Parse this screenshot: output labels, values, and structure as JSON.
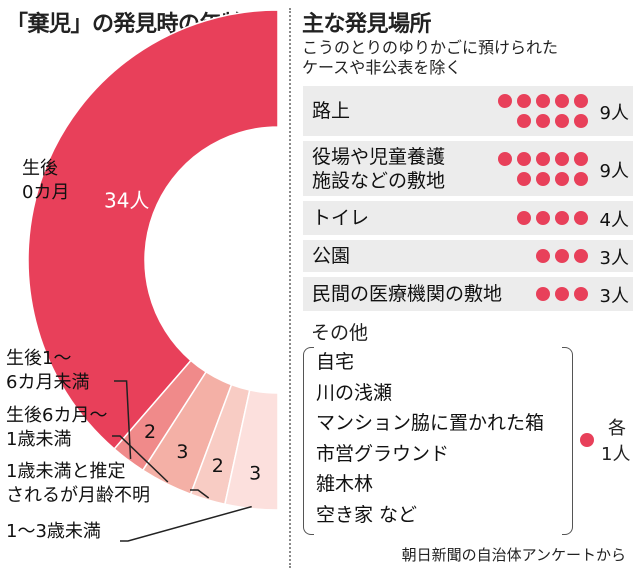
{
  "left_title": "「棄児」の発見時の年齢",
  "right_title": "主な発見場所",
  "right_note_line1": "こうのとりのゆりかごに預けられた",
  "right_note_line2": "ケースや非公表を除く",
  "source": "朝日新聞の自治体アンケートから",
  "colors": {
    "accent": "#e8405a",
    "slice_2": "#f08a8a",
    "slice_3": "#f4b0a6",
    "slice_4": "#f8ccc4",
    "slice_5": "#fce0dd",
    "row_bg": "#ececec"
  },
  "chart_data": [
    {
      "type": "pie",
      "title": "「棄児」の発見時の年齢",
      "categories": [
        "生後0カ月",
        "生後1～6カ月未満",
        "生後6カ月～1歳未満",
        "1歳未満と推定されるが月齢不明",
        "1～3歳未満"
      ],
      "values": [
        34,
        2,
        3,
        2,
        3
      ],
      "value_labels": [
        "34人",
        "2",
        "3",
        "2",
        "3"
      ],
      "label_lines": [
        [
          "生後",
          "0カ月"
        ],
        [
          "生後1～",
          "6カ月未満"
        ],
        [
          "生後6カ月～",
          "1歳未満"
        ],
        [
          "1歳未満と推定",
          "されるが月齢不明"
        ],
        [
          "1～3歳未満"
        ]
      ],
      "display": "half-donut, bottom-left quadrant filled, starting at top"
    },
    {
      "type": "table",
      "title": "主な発見場所",
      "rows": [
        {
          "label_lines": [
            "路上"
          ],
          "value": 9,
          "value_label": "9人"
        },
        {
          "label_lines": [
            "役場や児童養護",
            "施設などの敷地"
          ],
          "value": 9,
          "value_label": "9人"
        },
        {
          "label_lines": [
            "トイレ"
          ],
          "value": 4,
          "value_label": "4人"
        },
        {
          "label_lines": [
            "公園"
          ],
          "value": 3,
          "value_label": "3人"
        },
        {
          "label_lines": [
            "民間の医療機関の敷地"
          ],
          "value": 3,
          "value_label": "3人"
        }
      ],
      "other": {
        "title": "その他",
        "items": [
          "自宅",
          "川の浅瀬",
          "マンション脇に置かれた箱",
          "市営グラウンド",
          "雑木林",
          "空き家 など"
        ],
        "value": 1,
        "value_label_lines": [
          "各",
          "1人"
        ]
      }
    }
  ]
}
